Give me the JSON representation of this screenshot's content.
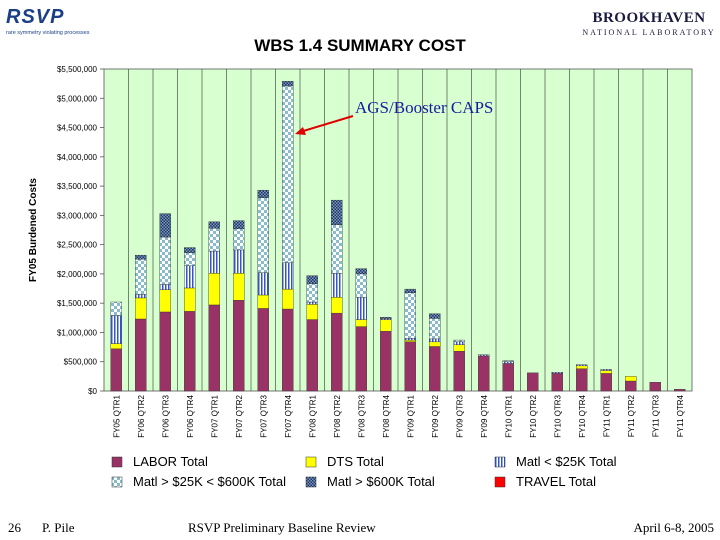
{
  "header": {
    "logo_left": "RSVP",
    "logo_left_tagline": "rare symmetry violating processes",
    "logo_right_main": "BROOKHAVEN",
    "logo_right_sub": "NATIONAL LABORATORY",
    "title": "WBS 1.4 SUMMARY COST"
  },
  "footer": {
    "page_number": "26",
    "author": "P. Pile",
    "event": "RSVP Preliminary Baseline Review",
    "date": "April 6-8, 2005"
  },
  "colors": {
    "plot_bg": "#d8ffd0",
    "labor": "#993366",
    "dts": "#ffff00",
    "matl_small": "#3355cc",
    "matl_mid": "#88bbcc",
    "matl_large": "#446699",
    "travel": "#ff0000",
    "annotation": "#1a1aa0",
    "arrow": "#e00000"
  },
  "chart_data": {
    "type": "bar",
    "stacked": true,
    "ylabel": "FY05 Burdened Costs",
    "ylim": [
      0,
      5500000
    ],
    "yticks": [
      "$0",
      "$500,000",
      "$1,000,000",
      "$1,500,000",
      "$2,000,000",
      "$2,500,000",
      "$3,000,000",
      "$3,500,000",
      "$4,000,000",
      "$4,500,000",
      "$5,000,000",
      "$5,500,000"
    ],
    "categories": [
      "FY05 QTR1",
      "FY06 QTR2",
      "FY06 QTR3",
      "FY06 QTR4",
      "FY07 QTR1",
      "FY07 QTR2",
      "FY07 QTR3",
      "FY07 QTR4",
      "FY08 QTR1",
      "FY08 QTR2",
      "FY08 QTR3",
      "FY08 QTR4",
      "FY09 QTR1",
      "FY09 QTR2",
      "FY09 QTR3",
      "FY09 QTR4",
      "FY10 QTR1",
      "FY10 QTR2",
      "FY10 QTR3",
      "FY10 QTR4",
      "FY11 QTR1",
      "FY11 QTR2",
      "FY11 QTR3",
      "FY11 QTR4"
    ],
    "series": [
      {
        "name": "LABOR Total",
        "values": [
          720000,
          1230000,
          1350000,
          1360000,
          1470000,
          1550000,
          1410000,
          1400000,
          1220000,
          1330000,
          1100000,
          1020000,
          840000,
          760000,
          680000,
          600000,
          470000,
          310000,
          300000,
          380000,
          300000,
          170000,
          150000,
          30000
        ]
      },
      {
        "name": "DTS Total",
        "values": [
          90000,
          360000,
          380000,
          400000,
          540000,
          460000,
          230000,
          340000,
          260000,
          270000,
          120000,
          200000,
          30000,
          80000,
          110000,
          0,
          0,
          0,
          0,
          50000,
          50000,
          80000,
          0,
          0
        ]
      },
      {
        "name": "Matl < $25K Total",
        "values": [
          480000,
          60000,
          90000,
          380000,
          380000,
          400000,
          380000,
          450000,
          40000,
          410000,
          380000,
          20000,
          30000,
          50000,
          50000,
          20000,
          30000,
          0,
          20000,
          20000,
          20000,
          0,
          0,
          0
        ]
      },
      {
        "name": "Matl > $25K < $600K Total",
        "values": [
          230000,
          600000,
          810000,
          220000,
          390000,
          360000,
          1280000,
          3020000,
          310000,
          830000,
          400000,
          0,
          780000,
          350000,
          30000,
          0,
          20000,
          0,
          0,
          0,
          0,
          0,
          0,
          0
        ]
      },
      {
        "name": "Matl > $600K Total",
        "values": [
          0,
          70000,
          400000,
          90000,
          110000,
          140000,
          130000,
          80000,
          140000,
          420000,
          90000,
          20000,
          60000,
          80000,
          0,
          0,
          0,
          0,
          0,
          0,
          0,
          0,
          0,
          0
        ]
      },
      {
        "name": "TRAVEL Total",
        "values": [
          0,
          0,
          0,
          0,
          0,
          0,
          0,
          0,
          0,
          0,
          0,
          0,
          0,
          0,
          0,
          0,
          0,
          0,
          0,
          0,
          0,
          0,
          0,
          0
        ]
      }
    ],
    "annotation": {
      "text": "AGS/Booster CAPS",
      "target_category": "FY07 QTR4"
    },
    "grid": "vertical separators at fiscal-year boundaries",
    "legend_position": "bottom"
  }
}
